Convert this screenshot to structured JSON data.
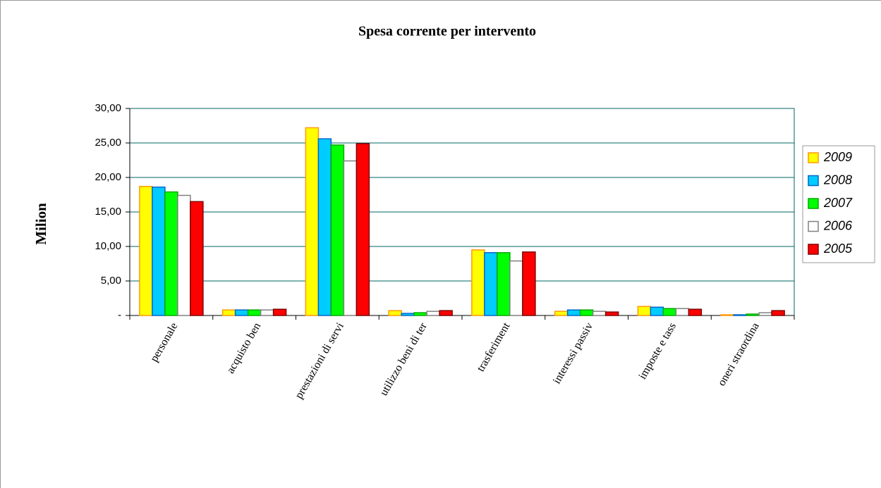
{
  "chart_data": {
    "type": "bar",
    "title": "Spesa corrente per intervento",
    "y_label": "Milion",
    "categories": [
      "personale",
      "acquisto ben",
      "prestazioni di servi",
      "utilizzo beni di ter",
      "trasferiment",
      "interessi passiv",
      "imposte e tass",
      "oneri straordina"
    ],
    "series": [
      {
        "name": "2009",
        "color": "#ffff00",
        "border": "#ff9900",
        "values": [
          18.7,
          0.8,
          27.2,
          0.7,
          9.5,
          0.6,
          1.3,
          0.1
        ]
      },
      {
        "name": "2008",
        "color": "#00ccff",
        "border": "#0066cc",
        "values": [
          18.6,
          0.8,
          25.6,
          0.3,
          9.1,
          0.8,
          1.2,
          0.1
        ]
      },
      {
        "name": "2007",
        "color": "#00ff00",
        "border": "#00aa00",
        "values": [
          17.9,
          0.8,
          24.7,
          0.4,
          9.1,
          0.8,
          1.0,
          0.2
        ]
      },
      {
        "name": "2006",
        "color": "#ffffff",
        "border": "#808080",
        "values": [
          17.4,
          0.8,
          22.4,
          0.6,
          7.9,
          0.6,
          1.0,
          0.4
        ]
      },
      {
        "name": "2005",
        "color": "#ff0000",
        "border": "#800000",
        "values": [
          16.5,
          0.9,
          24.9,
          0.7,
          9.2,
          0.5,
          0.9,
          0.7
        ]
      }
    ],
    "ylim": [
      0,
      30
    ],
    "yticks": [
      {
        "value": 0,
        "label": "-"
      },
      {
        "value": 5,
        "label": "5,00"
      },
      {
        "value": 10,
        "label": "10,00"
      },
      {
        "value": 15,
        "label": "15,00"
      },
      {
        "value": 20,
        "label": "20,00"
      },
      {
        "value": 25,
        "label": "25,00"
      },
      {
        "value": 30,
        "label": "30,00"
      }
    ],
    "grid": true,
    "legend": "right"
  }
}
